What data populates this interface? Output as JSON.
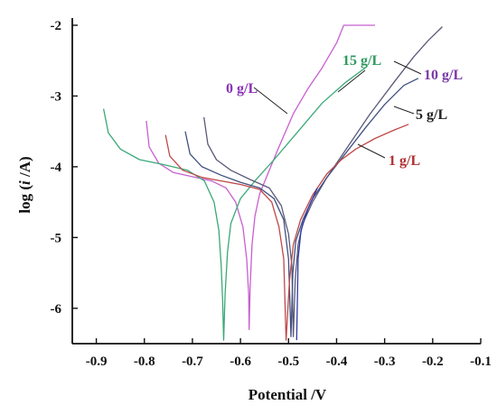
{
  "chart_data": {
    "type": "line",
    "title": "",
    "xlabel": "Potential /V",
    "ylabel_parts": [
      "log (",
      "i",
      " /A)"
    ],
    "xlim": [
      -0.95,
      -0.1
    ],
    "ylim": [
      -6.5,
      -2.0
    ],
    "x_ticks": [
      -0.9,
      -0.8,
      -0.7,
      -0.6,
      -0.5,
      -0.4,
      -0.3,
      -0.2,
      -0.1
    ],
    "y_ticks": [
      -2,
      -3,
      -4,
      -5,
      -6
    ],
    "grid": false,
    "series": [
      {
        "name": "0 g/L",
        "color": "#c85fd0",
        "points": [
          [
            -0.796,
            -3.35
          ],
          [
            -0.79,
            -3.72
          ],
          [
            -0.77,
            -3.95
          ],
          [
            -0.74,
            -4.08
          ],
          [
            -0.7,
            -4.14
          ],
          [
            -0.66,
            -4.2
          ],
          [
            -0.63,
            -4.3
          ],
          [
            -0.61,
            -4.5
          ],
          [
            -0.595,
            -4.85
          ],
          [
            -0.587,
            -5.3
          ],
          [
            -0.583,
            -5.8
          ],
          [
            -0.582,
            -6.3
          ],
          [
            -0.58,
            -5.7
          ],
          [
            -0.576,
            -5.1
          ],
          [
            -0.57,
            -4.7
          ],
          [
            -0.56,
            -4.38
          ],
          [
            -0.54,
            -4.05
          ],
          [
            -0.52,
            -3.72
          ],
          [
            -0.49,
            -3.25
          ],
          [
            -0.46,
            -2.9
          ],
          [
            -0.43,
            -2.6
          ],
          [
            -0.4,
            -2.25
          ],
          [
            -0.385,
            -2.0
          ],
          [
            -0.32,
            -2.0
          ]
        ]
      },
      {
        "name": "15 g/L",
        "color": "#3aa878",
        "points": [
          [
            -0.885,
            -3.18
          ],
          [
            -0.875,
            -3.52
          ],
          [
            -0.85,
            -3.75
          ],
          [
            -0.81,
            -3.9
          ],
          [
            -0.76,
            -3.97
          ],
          [
            -0.71,
            -4.05
          ],
          [
            -0.675,
            -4.2
          ],
          [
            -0.655,
            -4.5
          ],
          [
            -0.645,
            -4.9
          ],
          [
            -0.64,
            -5.4
          ],
          [
            -0.637,
            -5.9
          ],
          [
            -0.635,
            -6.45
          ],
          [
            -0.632,
            -5.8
          ],
          [
            -0.627,
            -5.2
          ],
          [
            -0.62,
            -4.8
          ],
          [
            -0.6,
            -4.45
          ],
          [
            -0.57,
            -4.2
          ],
          [
            -0.53,
            -3.9
          ],
          [
            -0.48,
            -3.5
          ],
          [
            -0.43,
            -3.1
          ],
          [
            -0.38,
            -2.8
          ],
          [
            -0.34,
            -2.6
          ]
        ]
      },
      {
        "name": "10 g/L",
        "color": "#5a5a78",
        "points": [
          [
            -0.676,
            -3.3
          ],
          [
            -0.668,
            -3.68
          ],
          [
            -0.65,
            -3.9
          ],
          [
            -0.62,
            -4.05
          ],
          [
            -0.58,
            -4.18
          ],
          [
            -0.54,
            -4.3
          ],
          [
            -0.515,
            -4.55
          ],
          [
            -0.5,
            -4.95
          ],
          [
            -0.493,
            -5.4
          ],
          [
            -0.49,
            -6.4
          ],
          [
            -0.486,
            -5.6
          ],
          [
            -0.48,
            -5.1
          ],
          [
            -0.47,
            -4.8
          ],
          [
            -0.45,
            -4.5
          ],
          [
            -0.42,
            -4.15
          ],
          [
            -0.38,
            -3.75
          ],
          [
            -0.33,
            -3.25
          ],
          [
            -0.28,
            -2.8
          ],
          [
            -0.24,
            -2.45
          ],
          [
            -0.21,
            -2.22
          ],
          [
            -0.18,
            -2.02
          ]
        ]
      },
      {
        "name": "5 g/L",
        "color": "#405080",
        "points": [
          [
            -0.715,
            -3.5
          ],
          [
            -0.705,
            -3.82
          ],
          [
            -0.68,
            -4.0
          ],
          [
            -0.64,
            -4.12
          ],
          [
            -0.6,
            -4.22
          ],
          [
            -0.56,
            -4.3
          ],
          [
            -0.53,
            -4.45
          ],
          [
            -0.51,
            -4.75
          ],
          [
            -0.5,
            -5.3
          ],
          [
            -0.495,
            -6.4
          ],
          [
            -0.491,
            -5.5
          ],
          [
            -0.485,
            -5.05
          ],
          [
            -0.47,
            -4.75
          ],
          [
            -0.45,
            -4.45
          ],
          [
            -0.42,
            -4.15
          ],
          [
            -0.38,
            -3.8
          ],
          [
            -0.34,
            -3.45
          ],
          [
            -0.3,
            -3.12
          ],
          [
            -0.26,
            -2.85
          ],
          [
            -0.23,
            -2.75
          ]
        ]
      },
      {
        "name": "1 g/L",
        "color": "#c04848",
        "points": [
          [
            -0.756,
            -3.55
          ],
          [
            -0.747,
            -3.85
          ],
          [
            -0.72,
            -4.05
          ],
          [
            -0.68,
            -4.15
          ],
          [
            -0.64,
            -4.2
          ],
          [
            -0.6,
            -4.25
          ],
          [
            -0.56,
            -4.32
          ],
          [
            -0.535,
            -4.5
          ],
          [
            -0.52,
            -4.85
          ],
          [
            -0.51,
            -5.3
          ],
          [
            -0.505,
            -6.45
          ],
          [
            -0.498,
            -5.6
          ],
          [
            -0.49,
            -5.1
          ],
          [
            -0.475,
            -4.75
          ],
          [
            -0.45,
            -4.4
          ],
          [
            -0.42,
            -4.1
          ],
          [
            -0.39,
            -3.9
          ],
          [
            -0.36,
            -3.75
          ],
          [
            -0.32,
            -3.6
          ],
          [
            -0.28,
            -3.48
          ],
          [
            -0.25,
            -3.4
          ]
        ]
      },
      {
        "name": "",
        "color": "#2e3aa8",
        "points": [
          [
            -0.483,
            -6.45
          ],
          [
            -0.48,
            -5.3
          ],
          [
            -0.474,
            -4.9
          ],
          [
            -0.46,
            -4.6
          ],
          [
            -0.44,
            -4.3
          ]
        ]
      }
    ],
    "labels": [
      {
        "text": "0 g/L",
        "color": "#8a32b8"
      },
      {
        "text": "15 g/L",
        "color": "#2e9a5e"
      },
      {
        "text": "10 g/L",
        "color": "#7a3aa8"
      },
      {
        "text": "5 g/L",
        "color": "#222222"
      },
      {
        "text": "1 g/L",
        "color": "#b03030"
      }
    ]
  }
}
